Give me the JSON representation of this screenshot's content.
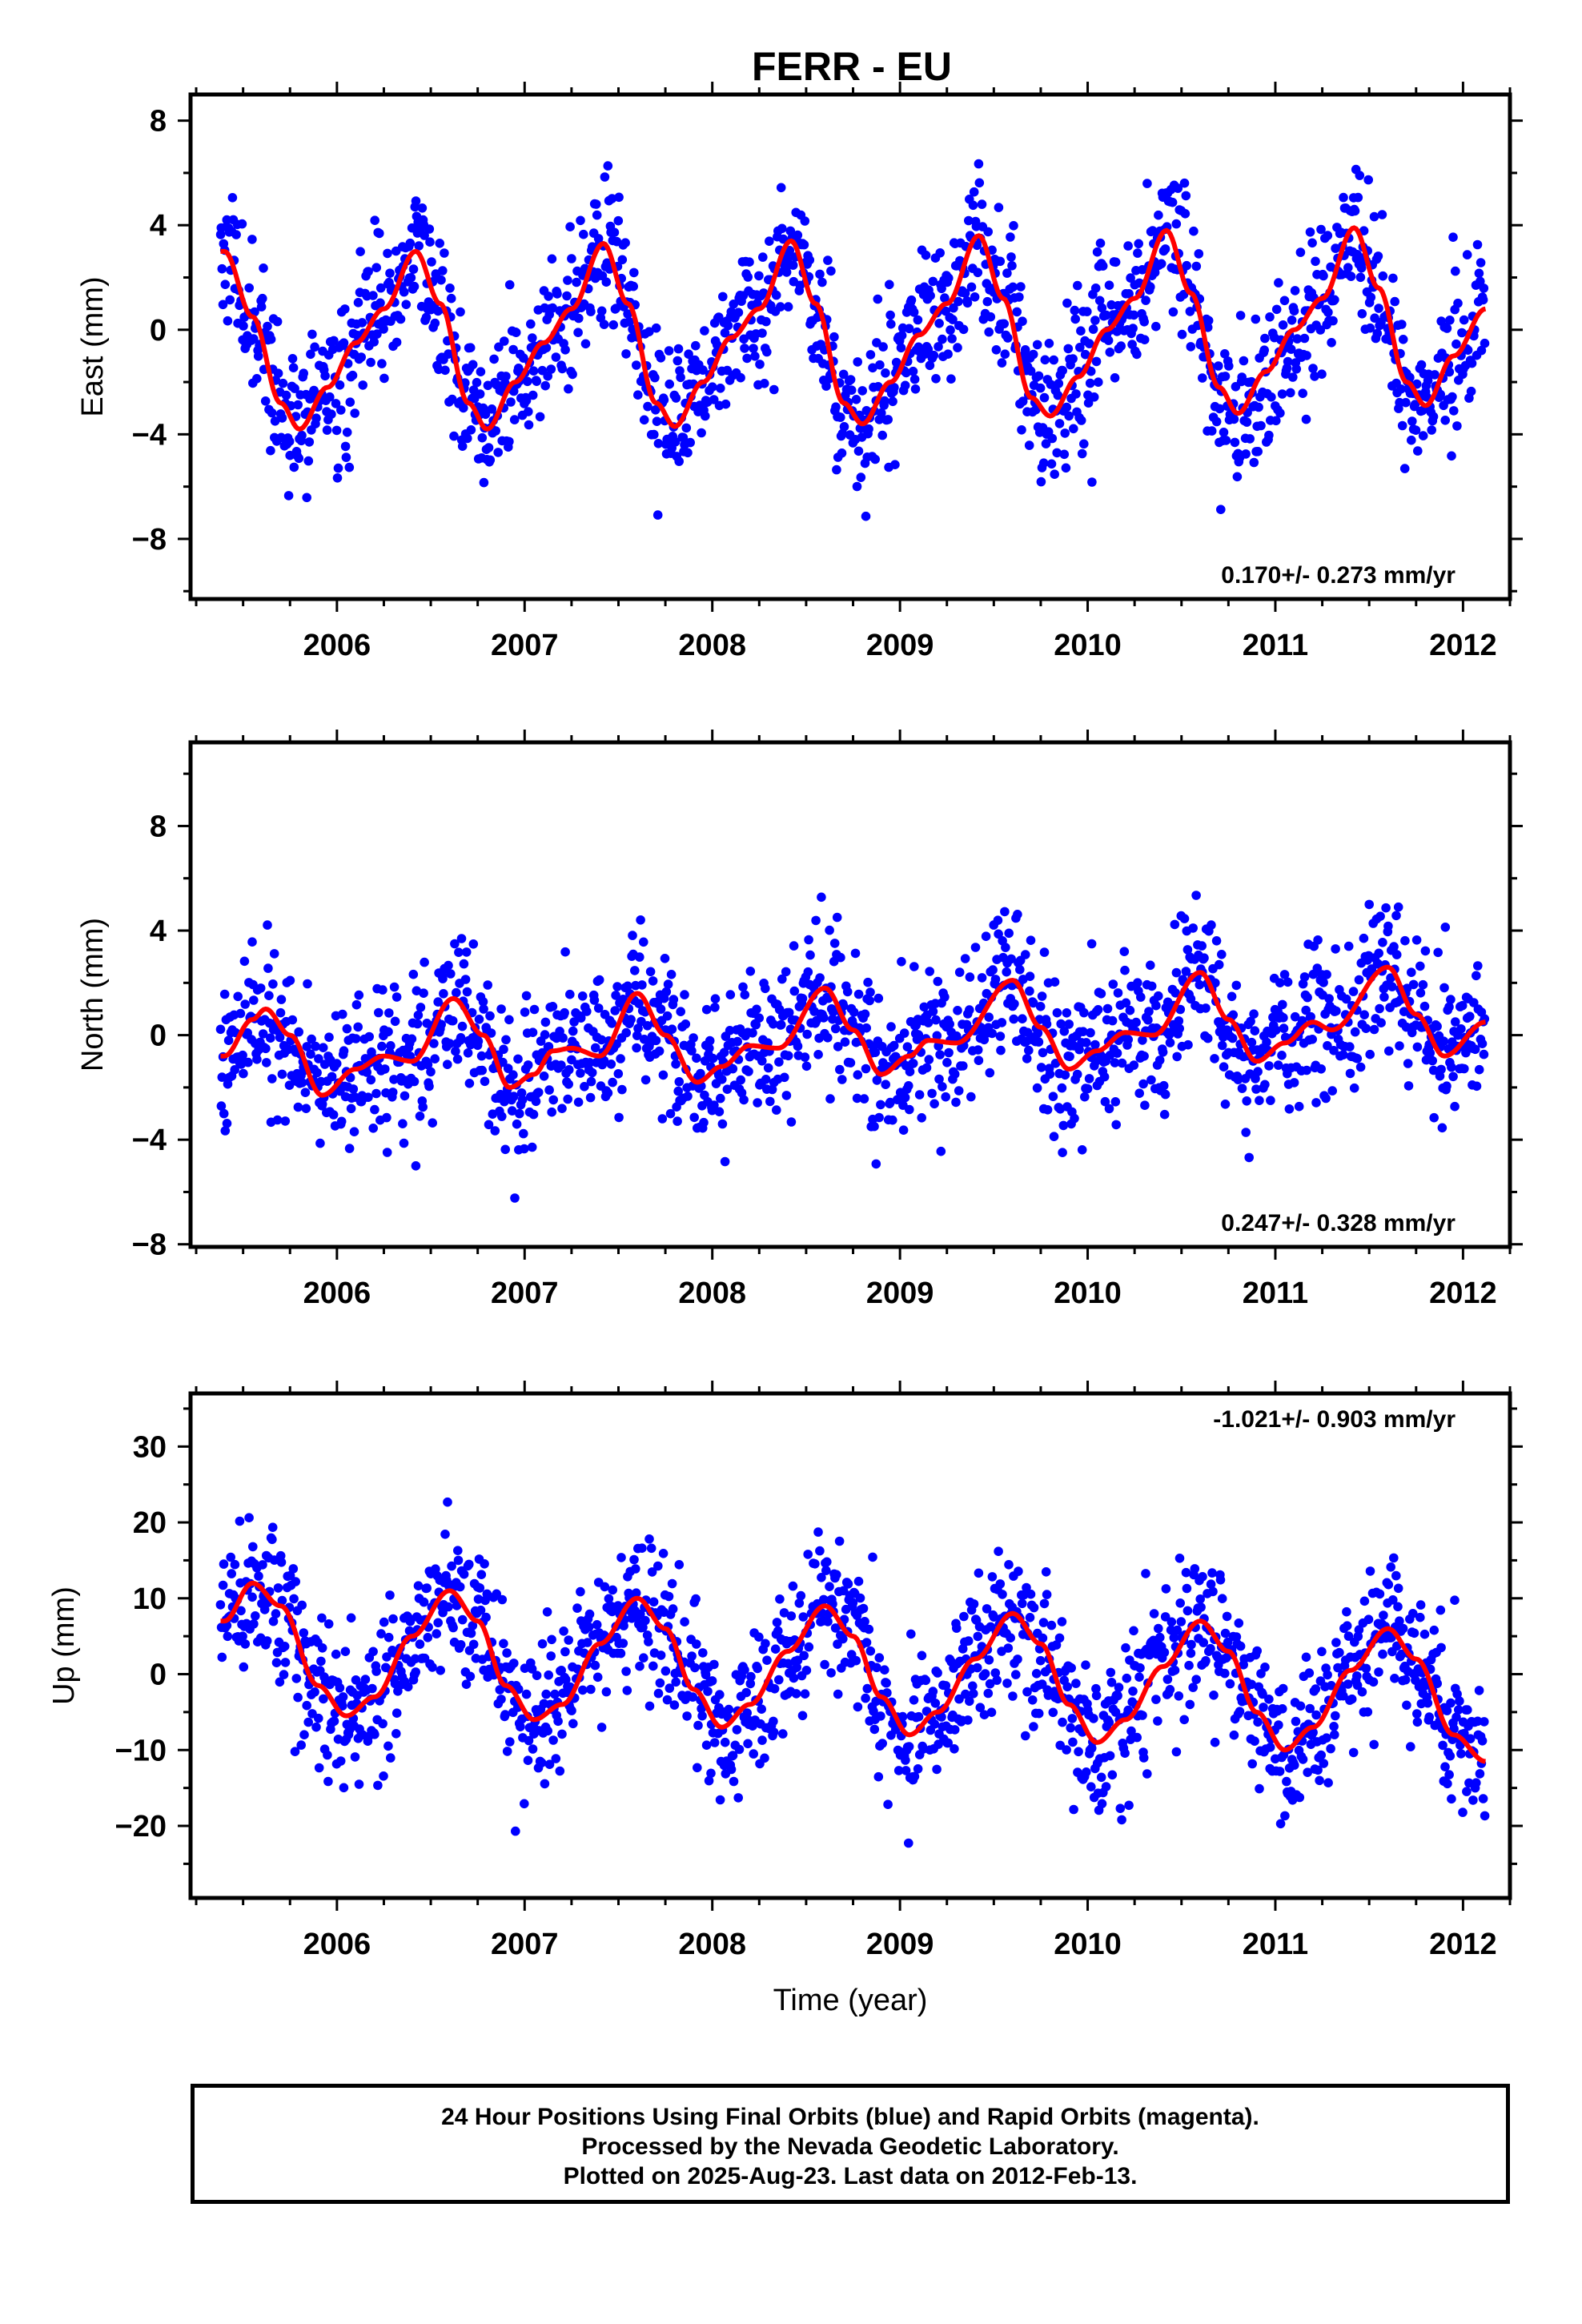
{
  "title": "FERR - EU",
  "chart_data": [
    {
      "type": "scatter",
      "panel": "east",
      "ylabel": "East (mm)",
      "xlabel": "",
      "xlim": [
        2005.22,
        2012.25
      ],
      "ylim": [
        -10.3,
        9.0
      ],
      "yticks": [
        -8,
        -4,
        0,
        4,
        8
      ],
      "xticks": [
        2006,
        2007,
        2008,
        2009,
        2010,
        2011,
        2012
      ],
      "rate_label": "0.170+/- 0.273 mm/yr",
      "rate_position": "bottom-right",
      "data_start": 2005.38,
      "data_end": 2012.12,
      "series": [
        {
          "kind": "points",
          "color": "#0000ff",
          "approx_points": 1600
        },
        {
          "kind": "model-curve",
          "color": "#ff0000",
          "model_samples": [
            [
              2005.4,
              3.0
            ],
            [
              2005.55,
              0.5
            ],
            [
              2005.7,
              -2.8
            ],
            [
              2005.8,
              -3.8
            ],
            [
              2005.95,
              -2.2
            ],
            [
              2006.1,
              -0.5
            ],
            [
              2006.25,
              0.8
            ],
            [
              2006.42,
              3.0
            ],
            [
              2006.55,
              1.0
            ],
            [
              2006.7,
              -2.8
            ],
            [
              2006.8,
              -3.8
            ],
            [
              2006.95,
              -2.0
            ],
            [
              2007.1,
              -0.5
            ],
            [
              2007.25,
              0.8
            ],
            [
              2007.42,
              3.3
            ],
            [
              2007.55,
              1.0
            ],
            [
              2007.7,
              -2.8
            ],
            [
              2007.8,
              -3.7
            ],
            [
              2007.95,
              -2.0
            ],
            [
              2008.1,
              -0.3
            ],
            [
              2008.25,
              0.8
            ],
            [
              2008.42,
              3.4
            ],
            [
              2008.55,
              1.0
            ],
            [
              2008.7,
              -2.8
            ],
            [
              2008.8,
              -3.6
            ],
            [
              2008.95,
              -2.0
            ],
            [
              2009.1,
              -0.2
            ],
            [
              2009.25,
              1.0
            ],
            [
              2009.42,
              3.6
            ],
            [
              2009.55,
              1.2
            ],
            [
              2009.7,
              -2.6
            ],
            [
              2009.8,
              -3.3
            ],
            [
              2009.95,
              -1.8
            ],
            [
              2010.1,
              0.0
            ],
            [
              2010.25,
              1.2
            ],
            [
              2010.42,
              3.8
            ],
            [
              2010.55,
              1.4
            ],
            [
              2010.7,
              -2.2
            ],
            [
              2010.8,
              -3.2
            ],
            [
              2010.95,
              -1.6
            ],
            [
              2011.1,
              0.0
            ],
            [
              2011.25,
              1.2
            ],
            [
              2011.42,
              3.9
            ],
            [
              2011.55,
              1.6
            ],
            [
              2011.7,
              -2.0
            ],
            [
              2011.8,
              -2.9
            ],
            [
              2011.95,
              -1.0
            ],
            [
              2012.12,
              0.8
            ]
          ]
        }
      ]
    },
    {
      "type": "scatter",
      "panel": "north",
      "ylabel": "North (mm)",
      "xlabel": "",
      "xlim": [
        2005.22,
        2012.25
      ],
      "ylim": [
        -8.1,
        11.2
      ],
      "yticks": [
        -8,
        -4,
        0,
        4,
        8
      ],
      "xticks": [
        2006,
        2007,
        2008,
        2009,
        2010,
        2011,
        2012
      ],
      "rate_label": "0.247+/- 0.328 mm/yr",
      "rate_position": "bottom-right",
      "data_start": 2005.38,
      "data_end": 2012.12,
      "series": [
        {
          "kind": "points",
          "color": "#0000ff",
          "approx_points": 1600
        },
        {
          "kind": "model-curve",
          "color": "#ff0000",
          "model_samples": [
            [
              2005.4,
              -0.8
            ],
            [
              2005.55,
              0.6
            ],
            [
              2005.62,
              1.0
            ],
            [
              2005.75,
              0.0
            ],
            [
              2005.92,
              -2.3
            ],
            [
              2006.1,
              -1.3
            ],
            [
              2006.25,
              -0.8
            ],
            [
              2006.4,
              -1.0
            ],
            [
              2006.62,
              1.4
            ],
            [
              2006.78,
              0.0
            ],
            [
              2006.92,
              -2.0
            ],
            [
              2007.05,
              -1.5
            ],
            [
              2007.15,
              -0.6
            ],
            [
              2007.25,
              -0.5
            ],
            [
              2007.4,
              -0.8
            ],
            [
              2007.6,
              1.6
            ],
            [
              2007.75,
              0.0
            ],
            [
              2007.92,
              -1.8
            ],
            [
              2008.05,
              -1.2
            ],
            [
              2008.2,
              -0.4
            ],
            [
              2008.35,
              -0.5
            ],
            [
              2008.6,
              1.8
            ],
            [
              2008.75,
              0.2
            ],
            [
              2008.9,
              -1.5
            ],
            [
              2009.05,
              -0.8
            ],
            [
              2009.15,
              -0.2
            ],
            [
              2009.3,
              -0.3
            ],
            [
              2009.6,
              2.1
            ],
            [
              2009.75,
              0.3
            ],
            [
              2009.9,
              -1.3
            ],
            [
              2010.05,
              -0.6
            ],
            [
              2010.2,
              0.1
            ],
            [
              2010.35,
              0.0
            ],
            [
              2010.6,
              2.4
            ],
            [
              2010.75,
              0.6
            ],
            [
              2010.9,
              -1.0
            ],
            [
              2011.05,
              -0.3
            ],
            [
              2011.2,
              0.5
            ],
            [
              2011.3,
              0.2
            ],
            [
              2011.6,
              2.6
            ],
            [
              2011.75,
              0.8
            ],
            [
              2011.9,
              -0.8
            ],
            [
              2012.12,
              0.5
            ]
          ]
        }
      ]
    },
    {
      "type": "scatter",
      "panel": "up",
      "ylabel": "Up (mm)",
      "xlabel": "Time (year)",
      "xlim": [
        2005.22,
        2012.25
      ],
      "ylim": [
        -29.5,
        37.0
      ],
      "yticks": [
        -20,
        -10,
        0,
        10,
        20,
        30
      ],
      "xticks": [
        2006,
        2007,
        2008,
        2009,
        2010,
        2011,
        2012
      ],
      "rate_label": "-1.021+/- 0.903 mm/yr",
      "rate_position": "top-right",
      "data_start": 2005.38,
      "data_end": 2012.12,
      "series": [
        {
          "kind": "points",
          "color": "#0000ff",
          "approx_points": 1600
        },
        {
          "kind": "model-curve",
          "color": "#ff0000",
          "model_samples": [
            [
              2005.4,
              7.0
            ],
            [
              2005.55,
              12.0
            ],
            [
              2005.7,
              9.0
            ],
            [
              2005.9,
              -1.5
            ],
            [
              2006.05,
              -5.5
            ],
            [
              2006.2,
              -3.0
            ],
            [
              2006.4,
              5.0
            ],
            [
              2006.6,
              11.0
            ],
            [
              2006.75,
              7.0
            ],
            [
              2006.9,
              -1.5
            ],
            [
              2007.05,
              -6.0
            ],
            [
              2007.2,
              -4.0
            ],
            [
              2007.4,
              4.0
            ],
            [
              2007.6,
              10.0
            ],
            [
              2007.75,
              6.0
            ],
            [
              2007.9,
              -2.0
            ],
            [
              2008.05,
              -7.0
            ],
            [
              2008.2,
              -4.0
            ],
            [
              2008.4,
              3.0
            ],
            [
              2008.6,
              9.0
            ],
            [
              2008.75,
              5.0
            ],
            [
              2008.9,
              -3.0
            ],
            [
              2009.05,
              -8.0
            ],
            [
              2009.2,
              -5.0
            ],
            [
              2009.4,
              2.0
            ],
            [
              2009.6,
              8.0
            ],
            [
              2009.75,
              4.0
            ],
            [
              2009.9,
              -4.0
            ],
            [
              2010.05,
              -9.0
            ],
            [
              2010.2,
              -6.0
            ],
            [
              2010.4,
              1.0
            ],
            [
              2010.6,
              7.0
            ],
            [
              2010.75,
              3.0
            ],
            [
              2010.9,
              -5.0
            ],
            [
              2011.05,
              -10.0
            ],
            [
              2011.2,
              -7.0
            ],
            [
              2011.4,
              0.5
            ],
            [
              2011.6,
              6.0
            ],
            [
              2011.75,
              2.0
            ],
            [
              2011.95,
              -8.0
            ],
            [
              2012.12,
              -11.5
            ]
          ]
        }
      ]
    }
  ],
  "footer": {
    "line1": "24 Hour Positions Using Final Orbits (blue) and Rapid Orbits (magenta).",
    "line2": "Processed by the Nevada Geodetic Laboratory.",
    "line3": "Plotted on 2025-Aug-23. Last data on 2012-Feb-13."
  }
}
